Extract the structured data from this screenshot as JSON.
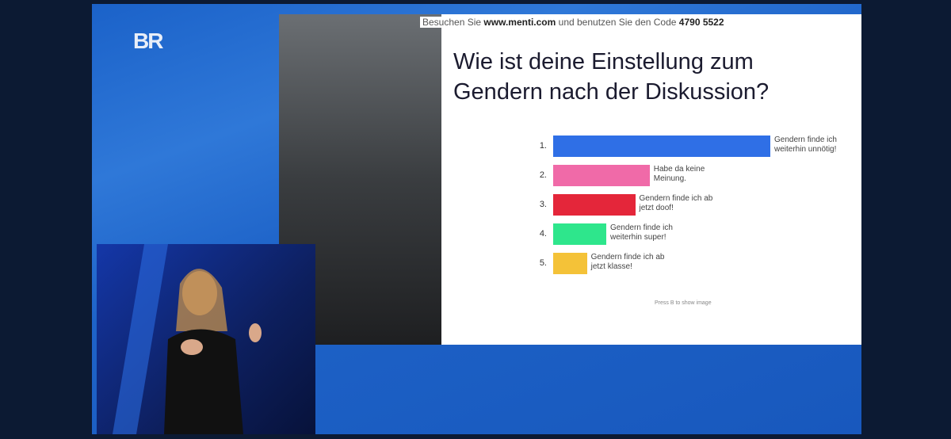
{
  "logo": "BR",
  "header": {
    "prefix": "Besuchen Sie",
    "url": "www.menti.com",
    "middle": "und benutzen Sie den Code",
    "code": "4790 5522"
  },
  "chart_data": {
    "type": "bar",
    "orientation": "horizontal",
    "title": [
      "Wie ist deine Einstellung zum",
      "Gendern nach der Diskussion?"
    ],
    "rank_labels": [
      "1.",
      "2.",
      "3.",
      "4.",
      "5."
    ],
    "categories": [
      "Gendern finde ich weiterhin unnötig!",
      "Habe da keine Meinung.",
      "Gendern finde ich ab jetzt doof!",
      "Gendern finde ich weiterhin super!",
      "Gendern finde ich ab jetzt klasse!"
    ],
    "values": [
      45,
      20,
      17,
      11,
      7
    ],
    "colors": [
      "#2f6fe6",
      "#f06aa8",
      "#e4263a",
      "#2ee68c",
      "#f4c238"
    ]
  },
  "footer": "Press B to show image"
}
